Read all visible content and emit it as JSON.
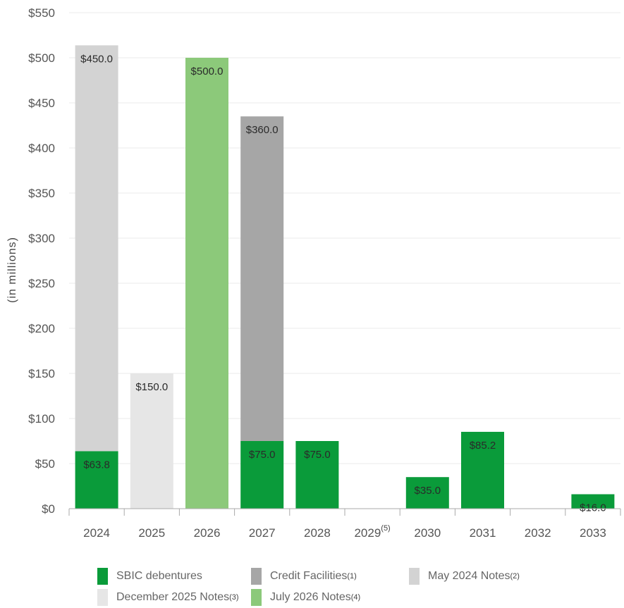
{
  "chart_data": {
    "type": "bar",
    "stacked": true,
    "ylabel": "(in millions)",
    "ylim": [
      0,
      550
    ],
    "yticks": [
      "$0",
      "$50",
      "$100",
      "$150",
      "$200",
      "$250",
      "$300",
      "$350",
      "$400",
      "$450",
      "$500",
      "$550"
    ],
    "categories": [
      "2024",
      "2025",
      "2026",
      "2027",
      "2028",
      "2029",
      "2030",
      "2031",
      "2032",
      "2033"
    ],
    "category_notes": [
      "",
      "",
      "",
      "",
      "",
      "(5)",
      "",
      "",
      "",
      ""
    ],
    "series": [
      {
        "name": "SBIC debentures",
        "note": "",
        "color": "#0a9b3a",
        "values": [
          63.8,
          0,
          0,
          75.0,
          75.0,
          0,
          35.0,
          85.2,
          0,
          16.0
        ],
        "labels": [
          "$63.8",
          "",
          "",
          "$75.0",
          "$75.0",
          "",
          "$35.0",
          "$85.2",
          "",
          "$16.0"
        ]
      },
      {
        "name": "Credit Facilities",
        "note": "(1)",
        "color": "#a6a6a6",
        "values": [
          0,
          0,
          0,
          360.0,
          0,
          0,
          0,
          0,
          0,
          0
        ],
        "labels": [
          "",
          "",
          "",
          "$360.0",
          "",
          "",
          "",
          "",
          "",
          ""
        ]
      },
      {
        "name": "May 2024 Notes",
        "note": "(2)",
        "color": "#d3d3d3",
        "values": [
          450.0,
          0,
          0,
          0,
          0,
          0,
          0,
          0,
          0,
          0
        ],
        "labels": [
          "$450.0",
          "",
          "",
          "",
          "",
          "",
          "",
          "",
          "",
          ""
        ]
      },
      {
        "name": "December 2025 Notes",
        "note": "(3)",
        "color": "#e6e6e6",
        "values": [
          0,
          150.0,
          0,
          0,
          0,
          0,
          0,
          0,
          0,
          0
        ],
        "labels": [
          "",
          "$150.0",
          "",
          "",
          "",
          "",
          "",
          "",
          "",
          ""
        ]
      },
      {
        "name": "July 2026 Notes",
        "note": "(4)",
        "color": "#8cc97a",
        "values": [
          0,
          0,
          500.0,
          0,
          0,
          0,
          0,
          0,
          0,
          0
        ],
        "labels": [
          "",
          "",
          "$500.0",
          "",
          "",
          "",
          "",
          "",
          "",
          ""
        ]
      }
    ],
    "grid": true,
    "legend_position": "bottom"
  }
}
